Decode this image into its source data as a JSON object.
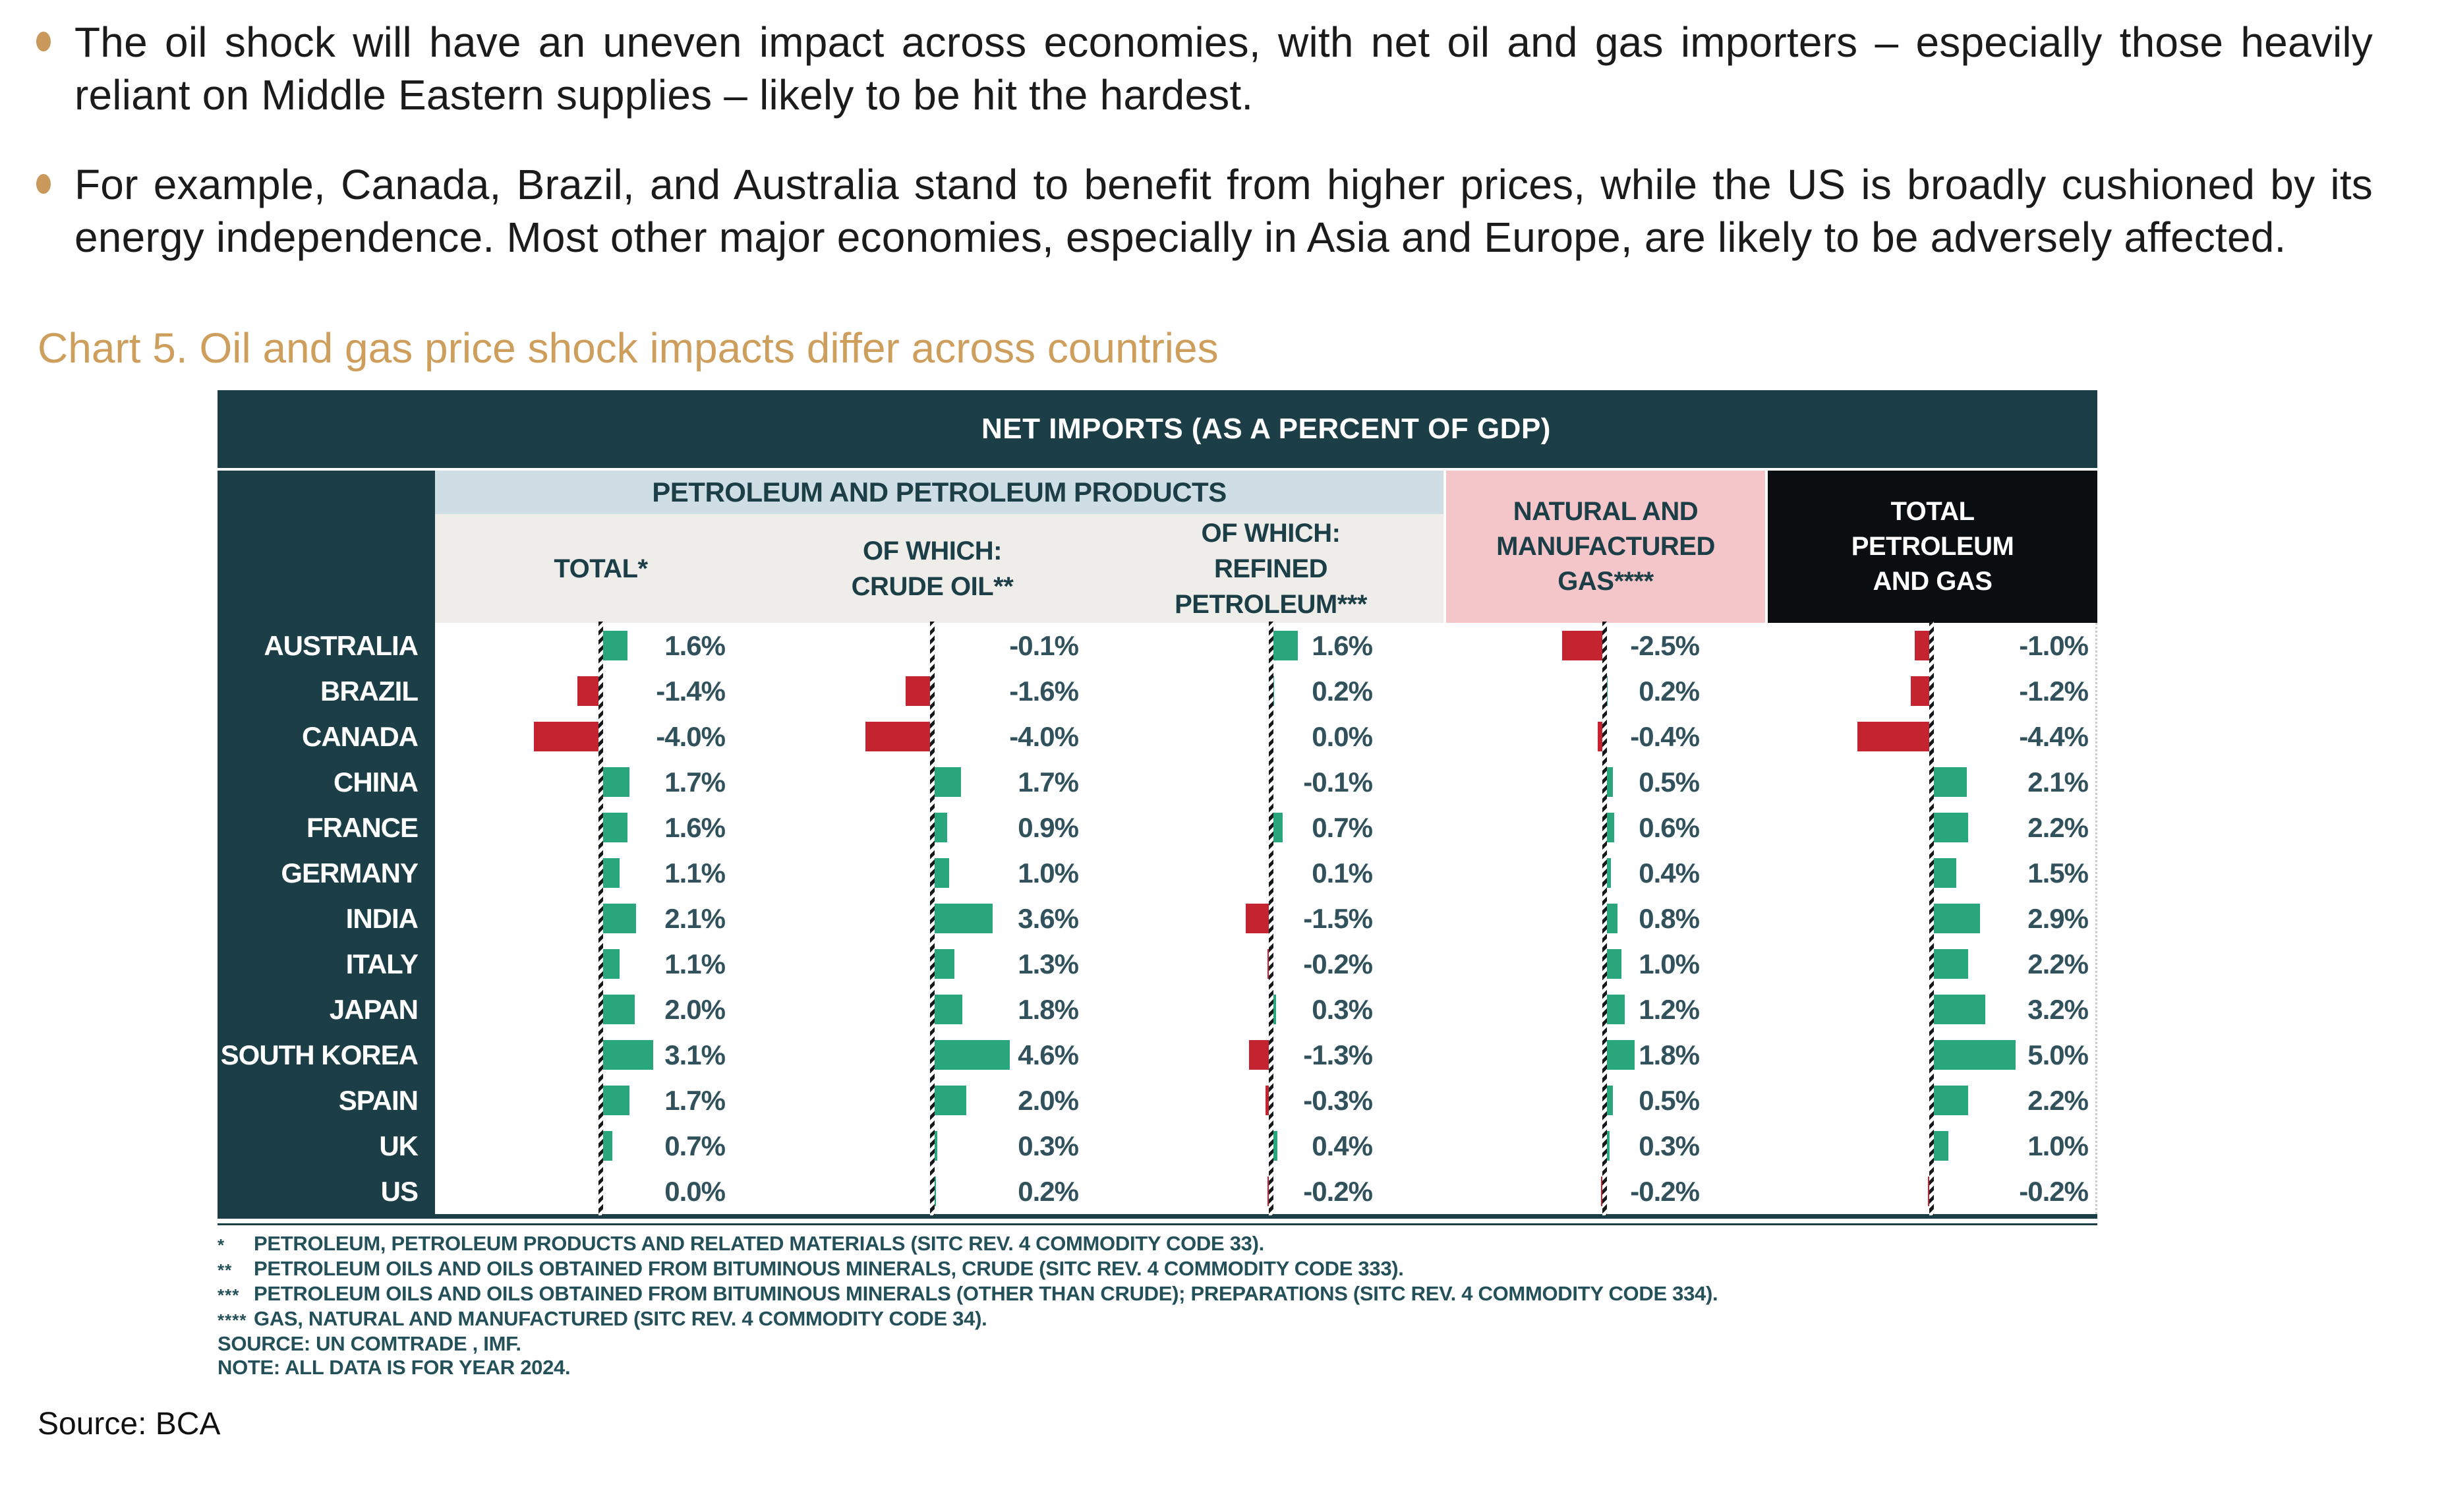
{
  "bullets": [
    {
      "text": "The oil shock will have an uneven impact across economies, with net oil and gas importers – especially those heavily reliant on Middle Eastern supplies – likely to be hit the hardest."
    },
    {
      "text": "For example, Canada, Brazil, and Australia stand to benefit from higher prices, while the US is broadly cushioned by its energy independence. Most other major economies, especially in Asia and Europe, are likely to be adversely affected."
    }
  ],
  "chart_title": "Chart 5. Oil and gas price shock impacts differ across countries",
  "chart_data": {
    "type": "bar",
    "title": "NET IMPORTS (AS A PERCENT OF GDP)",
    "group_header": "PETROLEUM AND PETROLEUM PRODUCTS",
    "unit": "percent of GDP",
    "value_format": "one decimal with % sign",
    "columns": [
      {
        "key": "total",
        "lines": [
          "TOTAL*"
        ]
      },
      {
        "key": "crude",
        "lines": [
          "OF WHICH:",
          "CRUDE OIL**"
        ]
      },
      {
        "key": "refined",
        "lines": [
          "OF WHICH:",
          "REFINED",
          "PETROLEUM***"
        ]
      },
      {
        "key": "gas",
        "lines": [
          "NATURAL AND",
          "MANUFACTURED",
          "GAS****"
        ]
      },
      {
        "key": "total_pg",
        "lines": [
          "TOTAL",
          "PETROLEUM",
          "AND GAS"
        ]
      }
    ],
    "categories": [
      "AUSTRALIA",
      "BRAZIL",
      "CANADA",
      "CHINA",
      "FRANCE",
      "GERMANY",
      "INDIA",
      "ITALY",
      "JAPAN",
      "SOUTH KOREA",
      "SPAIN",
      "UK",
      "US"
    ],
    "rows": [
      {
        "country": "AUSTRALIA",
        "total": 1.6,
        "crude": -0.1,
        "refined": 1.6,
        "gas": -2.5,
        "total_pg": -1.0
      },
      {
        "country": "BRAZIL",
        "total": -1.4,
        "crude": -1.6,
        "refined": 0.2,
        "gas": 0.2,
        "total_pg": -1.2
      },
      {
        "country": "CANADA",
        "total": -4.0,
        "crude": -4.0,
        "refined": 0.0,
        "gas": -0.4,
        "total_pg": -4.4
      },
      {
        "country": "CHINA",
        "total": 1.7,
        "crude": 1.7,
        "refined": -0.1,
        "gas": 0.5,
        "total_pg": 2.1
      },
      {
        "country": "FRANCE",
        "total": 1.6,
        "crude": 0.9,
        "refined": 0.7,
        "gas": 0.6,
        "total_pg": 2.2
      },
      {
        "country": "GERMANY",
        "total": 1.1,
        "crude": 1.0,
        "refined": 0.1,
        "gas": 0.4,
        "total_pg": 1.5
      },
      {
        "country": "INDIA",
        "total": 2.1,
        "crude": 3.6,
        "refined": -1.5,
        "gas": 0.8,
        "total_pg": 2.9
      },
      {
        "country": "ITALY",
        "total": 1.1,
        "crude": 1.3,
        "refined": -0.2,
        "gas": 1.0,
        "total_pg": 2.2
      },
      {
        "country": "JAPAN",
        "total": 2.0,
        "crude": 1.8,
        "refined": 0.3,
        "gas": 1.2,
        "total_pg": 3.2
      },
      {
        "country": "SOUTH KOREA",
        "total": 3.1,
        "crude": 4.6,
        "refined": -1.3,
        "gas": 1.8,
        "total_pg": 5.0
      },
      {
        "country": "SPAIN",
        "total": 1.7,
        "crude": 2.0,
        "refined": -0.3,
        "gas": 0.5,
        "total_pg": 2.2
      },
      {
        "country": "UK",
        "total": 0.7,
        "crude": 0.3,
        "refined": 0.4,
        "gas": 0.3,
        "total_pg": 1.0
      },
      {
        "country": "US",
        "total": 0.0,
        "crude": 0.2,
        "refined": -0.2,
        "gas": -0.2,
        "total_pg": -0.2
      }
    ]
  },
  "footnotes": [
    {
      "marker": "*",
      "text": "PETROLEUM, PETROLEUM PRODUCTS AND RELATED MATERIALS (SITC REV. 4 COMMODITY CODE 33)."
    },
    {
      "marker": "**",
      "text": "PETROLEUM OILS AND OILS OBTAINED FROM BITUMINOUS MINERALS, CRUDE (SITC REV. 4 COMMODITY CODE 333)."
    },
    {
      "marker": "***",
      "text": "PETROLEUM OILS AND OILS OBTAINED FROM BITUMINOUS MINERALS (OTHER THAN CRUDE); PREPARATIONS (SITC REV. 4 COMMODITY CODE 334)."
    },
    {
      "marker": "****",
      "text": "GAS, NATURAL AND MANUFACTURED (SITC REV. 4 COMMODITY CODE 34)."
    },
    {
      "marker": "",
      "text": "SOURCE: UN COMTRADE , IMF."
    },
    {
      "marker": "",
      "text": "NOTE: ALL DATA IS FOR YEAR 2024."
    }
  ],
  "source_note": "Source: BCA",
  "colors": {
    "teal": "#1C3F47",
    "gold": "#CE9E5C",
    "bullet_gold": "#C9995C",
    "green": "#29A67C",
    "red": "#C42430",
    "pink": "#F4C6CA",
    "lightblue": "#CFDEE4",
    "graybg": "#EFEDEA",
    "blackbox": "#0B0E11",
    "value_text": "#31525C",
    "footnote_text": "#24505A",
    "body_text": "#1B1B1B"
  }
}
